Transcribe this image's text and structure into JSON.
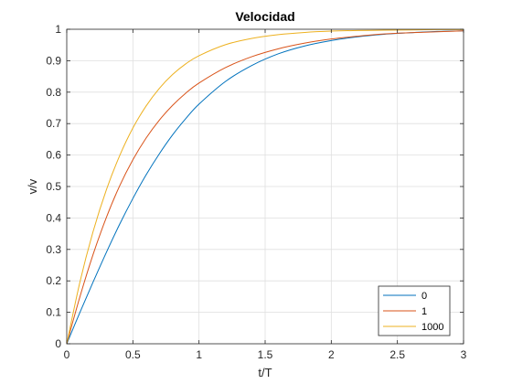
{
  "chart_data": {
    "type": "line",
    "title": "Velocidad",
    "xlabel": "t/T",
    "ylabel": "v/v",
    "xlim": [
      0,
      3
    ],
    "ylim": [
      0,
      1
    ],
    "xticks": [
      0,
      0.5,
      1,
      1.5,
      2,
      2.5,
      3
    ],
    "xtick_labels": [
      "0",
      "0.5",
      "1",
      "1.5",
      "2",
      "2.5",
      "3"
    ],
    "yticks": [
      0,
      0.1,
      0.2,
      0.3,
      0.4,
      0.5,
      0.6,
      0.7,
      0.8,
      0.9,
      1
    ],
    "ytick_labels": [
      "0",
      "0.1",
      "0.2",
      "0.3",
      "0.4",
      "0.5",
      "0.6",
      "0.7",
      "0.8",
      "0.9",
      "1"
    ],
    "grid": true,
    "legend_position": "bottom-right",
    "x": [
      0,
      0.1,
      0.2,
      0.3,
      0.4,
      0.5,
      0.6,
      0.7,
      0.8,
      0.9,
      1.0,
      1.2,
      1.4,
      1.6,
      1.8,
      2.0,
      2.2,
      2.4,
      2.6,
      2.8,
      3.0
    ],
    "series": [
      {
        "name": "0",
        "color": "#0072BD",
        "values": [
          0,
          0.1,
          0.197,
          0.291,
          0.38,
          0.462,
          0.537,
          0.604,
          0.664,
          0.716,
          0.762,
          0.834,
          0.885,
          0.922,
          0.947,
          0.964,
          0.976,
          0.984,
          0.989,
          0.993,
          0.995
        ]
      },
      {
        "name": "1",
        "color": "#D95319",
        "values": [
          0,
          0.15,
          0.285,
          0.402,
          0.502,
          0.585,
          0.654,
          0.711,
          0.758,
          0.797,
          0.829,
          0.878,
          0.913,
          0.938,
          0.956,
          0.969,
          0.978,
          0.985,
          0.989,
          0.992,
          0.995
        ]
      },
      {
        "name": "1000",
        "color": "#EDB120",
        "values": [
          0,
          0.197,
          0.358,
          0.49,
          0.598,
          0.686,
          0.756,
          0.812,
          0.856,
          0.89,
          0.916,
          0.951,
          0.971,
          0.983,
          0.99,
          0.994,
          0.996,
          0.997,
          0.998,
          0.999,
          0.999
        ]
      }
    ],
    "colors": {
      "grid": "#dfdfdf",
      "axis": "#262626",
      "legend_border": "#262626",
      "background": "#ffffff"
    }
  }
}
